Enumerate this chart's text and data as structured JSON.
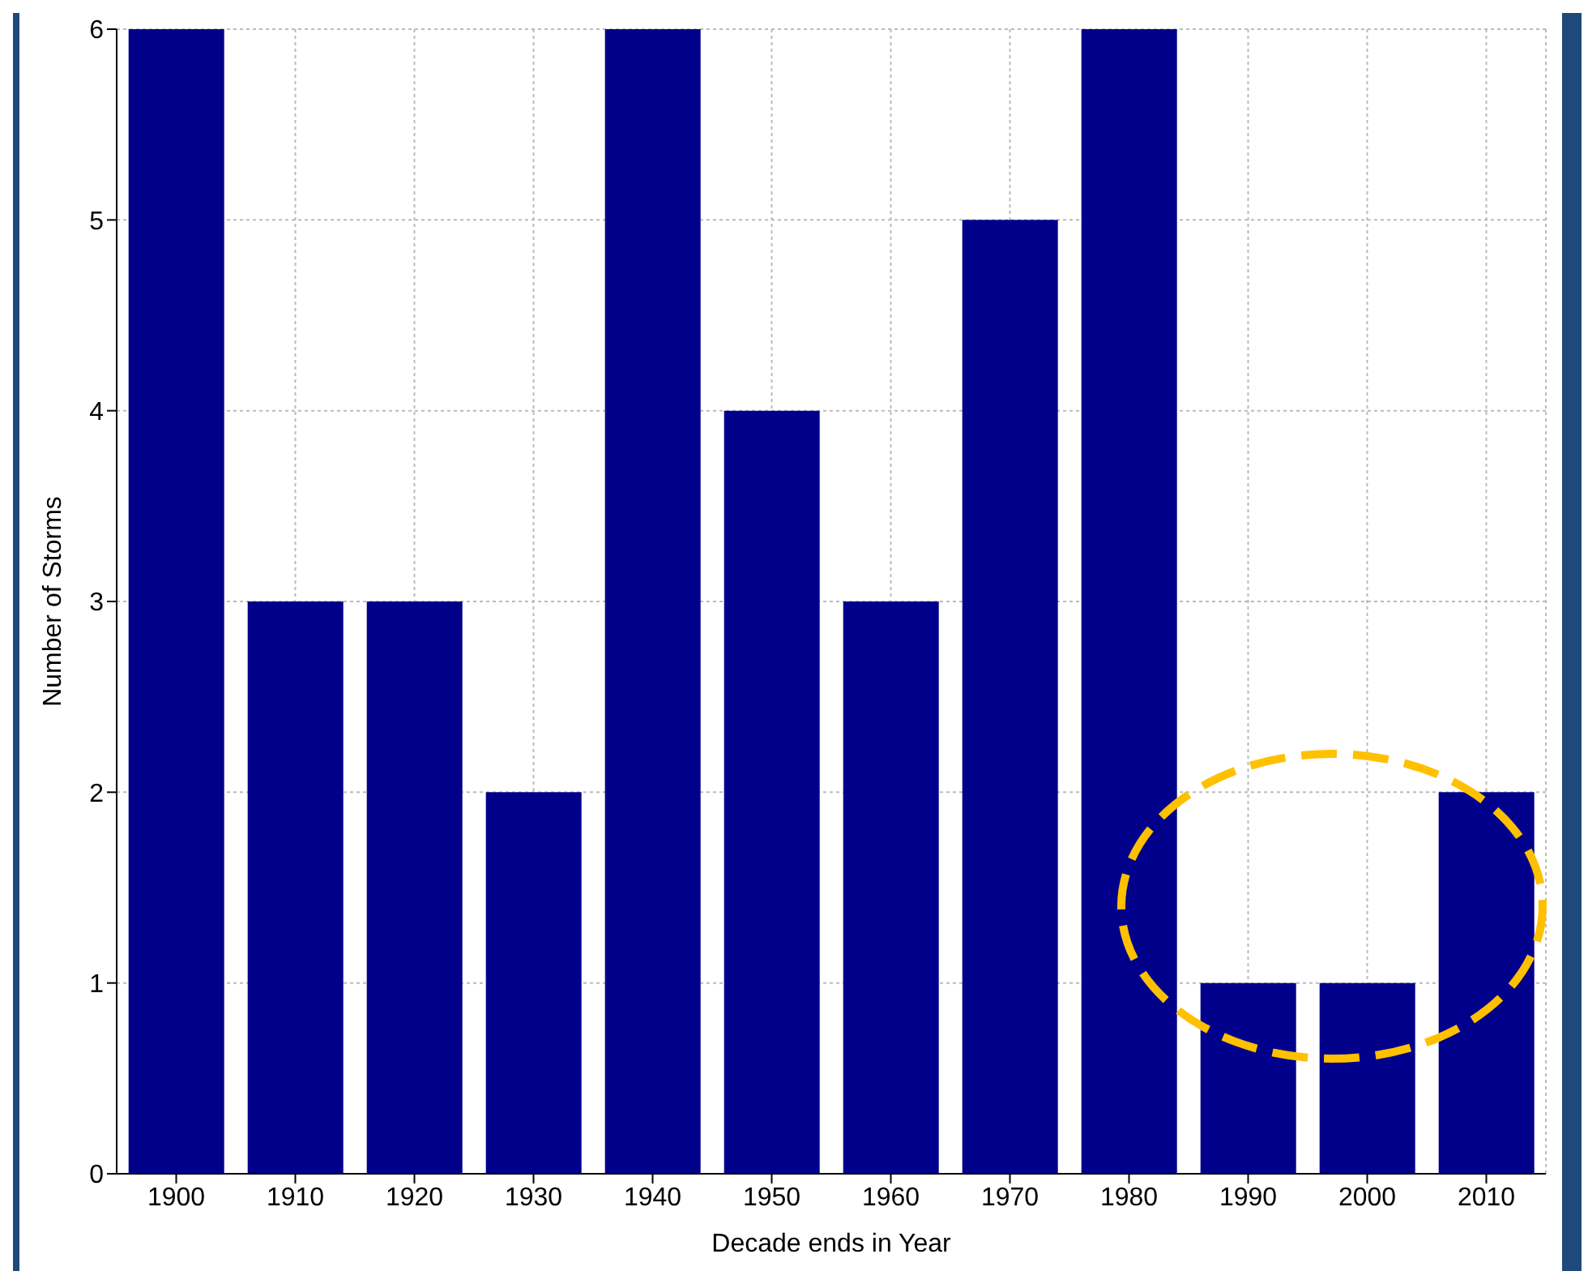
{
  "chart_data": {
    "type": "bar",
    "xlabel": "Decade ends in Year",
    "ylabel": "Number of Storms",
    "categories": [
      "1900",
      "1910",
      "1920",
      "1930",
      "1940",
      "1950",
      "1960",
      "1970",
      "1980",
      "1990",
      "2000",
      "2010"
    ],
    "values": [
      6,
      3,
      3,
      2,
      6,
      4,
      3,
      5,
      6,
      1,
      1,
      2
    ],
    "color": "#00008b",
    "ylim": [
      0,
      6
    ],
    "yticks": [
      0,
      1,
      2,
      3,
      4,
      5,
      6
    ],
    "grid": true
  }
}
